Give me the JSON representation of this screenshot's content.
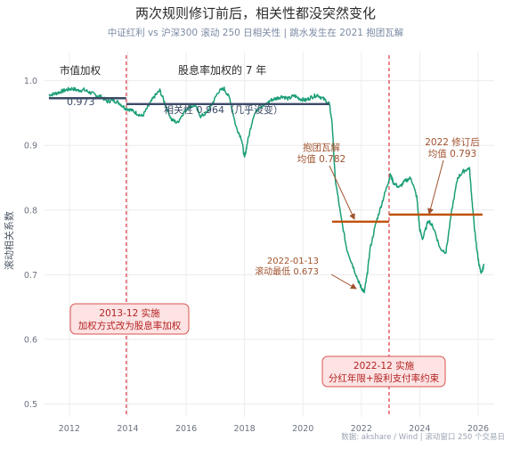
{
  "chart_data": {
    "type": "line",
    "title": "两次规则修订前后，相关性都没突然变化",
    "subtitle": "中证红利 vs 沪深300 滚动 250 日相关性  |  跳水发生在 2021 抱团瓦解",
    "ylabel": "滚动相关系数",
    "xlabel": "",
    "source": "数据: akshare / Wind  |  滚动窗口 250 个交易日",
    "xlim": [
      2011.15,
      2026.55
    ],
    "ylim": [
      0.48,
      1.045
    ],
    "xticks": [
      2012,
      2014,
      2016,
      2018,
      2020,
      2022,
      2024,
      2026
    ],
    "xtick_labels": [
      "2012",
      "2014",
      "2016",
      "2018",
      "2020",
      "2022",
      "2024",
      "2026"
    ],
    "yticks": [
      0.5,
      0.6,
      0.7,
      0.8,
      0.9,
      1.0
    ],
    "ytick_labels": [
      "0.5",
      "0.6",
      "0.7",
      "0.8",
      "0.9",
      "1.0"
    ],
    "grid": true,
    "colors": {
      "line": "#1b9e77",
      "mean_dark": "#3b4a66",
      "mean_orange": "#c0510c",
      "vline": "#e0454f",
      "annotation": "#a0522d",
      "box_fill": "#fde3e3",
      "box_border": "#d9534f",
      "box_text": "#b22222",
      "title": "#2b2b2b",
      "subtitle": "#7a8aa3",
      "grid": "#ececec",
      "axis_text": "#6b7280"
    },
    "series": [
      {
        "x": [
          2011.3,
          2011.5,
          2011.7,
          2011.9,
          2012.1,
          2012.3,
          2012.5,
          2012.7,
          2012.9,
          2013.1,
          2013.3,
          2013.5,
          2013.7,
          2013.9,
          2014.1,
          2014.3,
          2014.5,
          2014.7,
          2014.9,
          2015.1,
          2015.3,
          2015.5,
          2015.7,
          2015.9,
          2016.1,
          2016.3,
          2016.5,
          2016.7,
          2016.9,
          2017.1,
          2017.3,
          2017.5,
          2017.7,
          2017.9,
          2018.0,
          2018.1,
          2018.3,
          2018.5,
          2018.7,
          2018.9,
          2019.1,
          2019.3,
          2019.5,
          2019.7,
          2019.9,
          2020.1,
          2020.3,
          2020.5,
          2020.7,
          2020.9,
          2021.0,
          2021.1,
          2021.3,
          2021.5,
          2021.7,
          2021.9,
          2022.0,
          2022.1,
          2022.2,
          2022.3,
          2022.5,
          2022.7,
          2022.9,
          2023.0,
          2023.1,
          2023.3,
          2023.5,
          2023.7,
          2023.9,
          2024.0,
          2024.1,
          2024.3,
          2024.5,
          2024.7,
          2024.9,
          2025.1,
          2025.3,
          2025.5,
          2025.7,
          2025.8,
          2025.9,
          2026.0,
          2026.1,
          2026.2
        ],
        "y": [
          0.978,
          0.98,
          0.983,
          0.986,
          0.988,
          0.985,
          0.986,
          0.982,
          0.978,
          0.975,
          0.968,
          0.97,
          0.966,
          0.958,
          0.955,
          0.95,
          0.945,
          0.96,
          0.975,
          0.985,
          0.962,
          0.94,
          0.935,
          0.95,
          0.96,
          0.962,
          0.945,
          0.95,
          0.965,
          0.983,
          0.988,
          0.972,
          0.93,
          0.91,
          0.88,
          0.905,
          0.945,
          0.96,
          0.962,
          0.97,
          0.973,
          0.976,
          0.972,
          0.977,
          0.972,
          0.97,
          0.975,
          0.978,
          0.972,
          0.965,
          0.935,
          0.85,
          0.79,
          0.74,
          0.715,
          0.69,
          0.68,
          0.673,
          0.7,
          0.74,
          0.78,
          0.81,
          0.84,
          0.855,
          0.842,
          0.835,
          0.845,
          0.85,
          0.82,
          0.77,
          0.755,
          0.785,
          0.77,
          0.74,
          0.735,
          0.8,
          0.85,
          0.86,
          0.865,
          0.81,
          0.76,
          0.725,
          0.7,
          0.715
        ]
      }
    ],
    "mean_lines": [
      {
        "x0": 2011.3,
        "x1": 2013.95,
        "y": 0.973,
        "color": "#3b4a66"
      },
      {
        "x0": 2013.95,
        "x1": 2020.9,
        "y": 0.964,
        "color": "#3b4a66"
      },
      {
        "x0": 2021.0,
        "x1": 2022.95,
        "y": 0.782,
        "color": "#c0510c"
      },
      {
        "x0": 2022.95,
        "x1": 2026.15,
        "y": 0.793,
        "color": "#c0510c"
      }
    ],
    "vlines": [
      2013.95,
      2022.95
    ],
    "texts": {
      "label_mktcap": "市值加权",
      "val_0973": "0.973",
      "label_dividend": "股息率加权的 7 年",
      "label_corr": "相关性 0.964（几乎没变）",
      "ann_break_1": "抱团瓦解",
      "ann_break_2": "均值 0.782",
      "ann_low_1": "2022-01-13",
      "ann_low_2": "滚动最低 0.673",
      "ann_rev_1": "2022 修订后",
      "ann_rev_2": "均值 0.793",
      "box1_line1": "2013-12 实施",
      "box1_line2": "加权方式改为股息率加权",
      "box2_line1": "2022-12 实施",
      "box2_line2": "分红年限+股利支付率约束"
    }
  }
}
